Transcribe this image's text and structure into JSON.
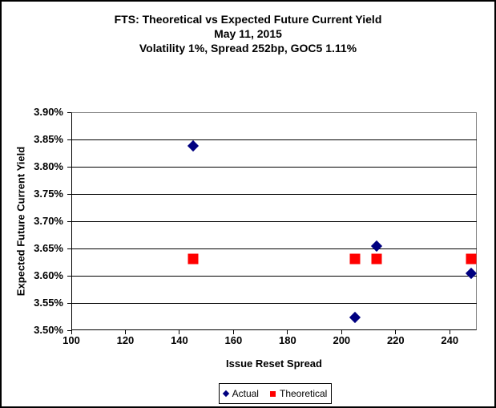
{
  "chart_data": {
    "type": "scatter",
    "title_lines": [
      "FTS: Theoretical vs Expected Future Current Yield",
      "May 11, 2015",
      "Volatility 1%, Spread 252bp, GOC5 1.11%"
    ],
    "xlabel": "Issue Reset Spread",
    "ylabel": "Expected Future Current Yield",
    "xlim": [
      100,
      250
    ],
    "ylim": [
      3.5,
      3.9
    ],
    "x_tick_labels": [
      "100",
      "120",
      "140",
      "160",
      "180",
      "200",
      "220",
      "240"
    ],
    "y_tick_labels": [
      "3.90%",
      "3.85%",
      "3.80%",
      "3.75%",
      "3.70%",
      "3.65%",
      "3.60%",
      "3.55%",
      "3.50%"
    ],
    "grid": "horizontal-only",
    "legend_position": "bottom-center",
    "series": [
      {
        "name": "Actual",
        "marker": "diamond",
        "color": "#000080",
        "points": [
          {
            "x": 145,
            "y": 3.838
          },
          {
            "x": 205,
            "y": 3.524
          },
          {
            "x": 213,
            "y": 3.655
          },
          {
            "x": 248,
            "y": 3.605
          }
        ]
      },
      {
        "name": "Theoretical",
        "marker": "square",
        "color": "#FF0000",
        "points": [
          {
            "x": 145,
            "y": 3.631
          },
          {
            "x": 205,
            "y": 3.631
          },
          {
            "x": 213,
            "y": 3.631
          },
          {
            "x": 248,
            "y": 3.631
          }
        ]
      }
    ]
  }
}
